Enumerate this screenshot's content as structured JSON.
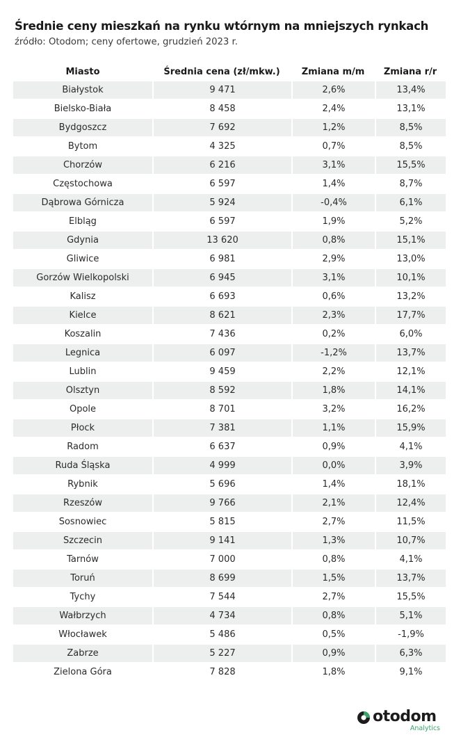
{
  "title": "Średnie ceny mieszkań na rynku wtórnym na mniejszych rynkach",
  "subtitle": "źródło: Otodom; ceny ofertowe, grudzień 2023 r.",
  "chart_data": {
    "type": "table",
    "columns": [
      "Miasto",
      "Średnia cena (zł/mkw.)",
      "Zmiana m/m",
      "Zmiana r/r"
    ],
    "rows": [
      [
        "Białystok",
        "9 471",
        "2,6%",
        "13,4%"
      ],
      [
        "Bielsko-Biała",
        "8 458",
        "2,4%",
        "13,1%"
      ],
      [
        "Bydgoszcz",
        "7 692",
        "1,2%",
        "8,5%"
      ],
      [
        "Bytom",
        "4 325",
        "0,7%",
        "8,5%"
      ],
      [
        "Chorzów",
        "6 216",
        "3,1%",
        "15,5%"
      ],
      [
        "Częstochowa",
        "6 597",
        "1,4%",
        "8,7%"
      ],
      [
        "Dąbrowa Górnicza",
        "5 924",
        "-0,4%",
        "6,1%"
      ],
      [
        "Elbląg",
        "6 597",
        "1,9%",
        "5,2%"
      ],
      [
        "Gdynia",
        "13 620",
        "0,8%",
        "15,1%"
      ],
      [
        "Gliwice",
        "6 981",
        "2,9%",
        "13,0%"
      ],
      [
        "Gorzów Wielkopolski",
        "6 945",
        "3,1%",
        "10,1%"
      ],
      [
        "Kalisz",
        "6 693",
        "0,6%",
        "13,2%"
      ],
      [
        "Kielce",
        "8 621",
        "2,3%",
        "17,7%"
      ],
      [
        "Koszalin",
        "7 436",
        "0,2%",
        "6,0%"
      ],
      [
        "Legnica",
        "6 097",
        "-1,2%",
        "13,7%"
      ],
      [
        "Lublin",
        "9 459",
        "2,2%",
        "12,1%"
      ],
      [
        "Olsztyn",
        "8 592",
        "1,8%",
        "14,1%"
      ],
      [
        "Opole",
        "8 701",
        "3,2%",
        "16,2%"
      ],
      [
        "Płock",
        "7 381",
        "1,1%",
        "15,9%"
      ],
      [
        "Radom",
        "6 637",
        "0,9%",
        "4,1%"
      ],
      [
        "Ruda Śląska",
        "4 999",
        "0,0%",
        "3,9%"
      ],
      [
        "Rybnik",
        "5 696",
        "1,4%",
        "18,1%"
      ],
      [
        "Rzeszów",
        "9 766",
        "2,1%",
        "12,4%"
      ],
      [
        "Sosnowiec",
        "5 815",
        "2,7%",
        "11,5%"
      ],
      [
        "Szczecin",
        "9 141",
        "1,3%",
        "10,7%"
      ],
      [
        "Tarnów",
        "7 000",
        "0,8%",
        "4,1%"
      ],
      [
        "Toruń",
        "8 699",
        "1,5%",
        "13,7%"
      ],
      [
        "Tychy",
        "7 544",
        "2,7%",
        "15,5%"
      ],
      [
        "Wałbrzych",
        "4 734",
        "0,8%",
        "5,1%"
      ],
      [
        "Włocławek",
        "5 486",
        "0,5%",
        "-1,9%"
      ],
      [
        "Zabrze",
        "5 227",
        "0,9%",
        "6,3%"
      ],
      [
        "Zielona Góra",
        "7 828",
        "1,8%",
        "9,1%"
      ]
    ]
  },
  "branding": {
    "logo_text": "otodom",
    "logo_subtext": "Analytics",
    "logo_icon": "otodom-logo-icon",
    "accent_color": "#3aa36a",
    "stripe_color": "#ecefee"
  }
}
